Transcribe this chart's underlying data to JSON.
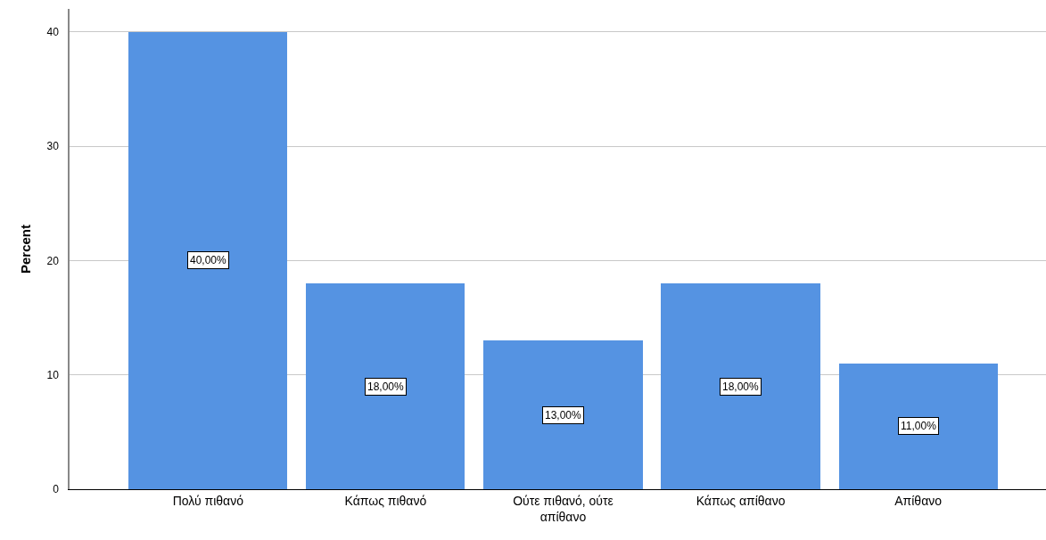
{
  "chart_data": {
    "type": "bar",
    "ylabel": "Percent",
    "categories": [
      "Πολύ πιθανό",
      "Κάπως πιθανό",
      "Ούτε πιθανό, ούτε απίθανο",
      "Κάπως απίθανο",
      "Απίθανο"
    ],
    "values": [
      40,
      18,
      13,
      18,
      11
    ],
    "color": "#5593e2",
    "value_labels": [
      "40,00%",
      "18,00%",
      "13,00%",
      "18,00%",
      "11,00%"
    ],
    "ylim": [
      0,
      42
    ],
    "yticks": [
      0,
      10,
      20,
      30,
      40
    ],
    "grid": "y"
  }
}
